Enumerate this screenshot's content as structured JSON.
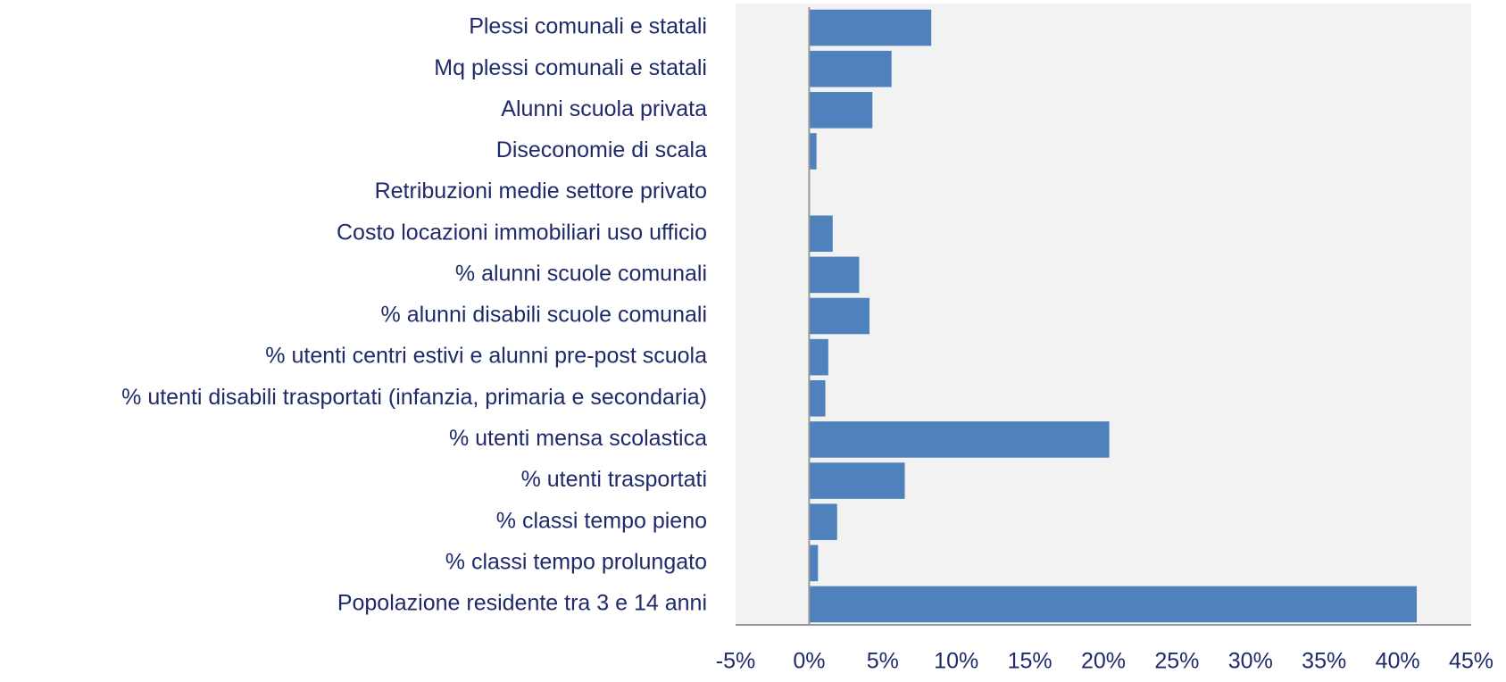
{
  "chart_data": {
    "type": "barh",
    "categories": [
      "Plessi comunali e statali",
      "Mq plessi comunali e statali",
      "Alunni scuola privata",
      "Diseconomie di scala",
      "Retribuzioni medie settore privato ",
      "Costo locazioni immobiliari uso ufficio",
      "% alunni scuole comunali",
      "% alunni disabili scuole comunali",
      "% utenti centri estivi e alunni pre-post scuola",
      "% utenti disabili trasportati (infanzia, primaria e secondaria)",
      "% utenti mensa scolastica",
      "% utenti trasportati",
      "% classi tempo pieno",
      "% classi tempo prolungato",
      "Popolazione residente tra 3 e 14 anni"
    ],
    "values": [
      8.3,
      5.6,
      4.3,
      0.5,
      0,
      1.6,
      3.4,
      4.1,
      1.3,
      1.1,
      20.4,
      6.5,
      1.9,
      0.6,
      41.3
    ],
    "color": "#4f81bd",
    "xlim": [
      -5,
      45
    ],
    "xticks": [
      {
        "value": -5,
        "label": "-5%"
      },
      {
        "value": 0,
        "label": "0%"
      },
      {
        "value": 5,
        "label": "5%"
      },
      {
        "value": 10,
        "label": "10%"
      },
      {
        "value": 15,
        "label": "15%"
      },
      {
        "value": 20,
        "label": "20%"
      },
      {
        "value": 25,
        "label": "25%"
      },
      {
        "value": 30,
        "label": "30%"
      },
      {
        "value": 35,
        "label": "35%"
      },
      {
        "value": 40,
        "label": "40%"
      },
      {
        "value": 45,
        "label": "45%"
      }
    ],
    "grid": false
  }
}
